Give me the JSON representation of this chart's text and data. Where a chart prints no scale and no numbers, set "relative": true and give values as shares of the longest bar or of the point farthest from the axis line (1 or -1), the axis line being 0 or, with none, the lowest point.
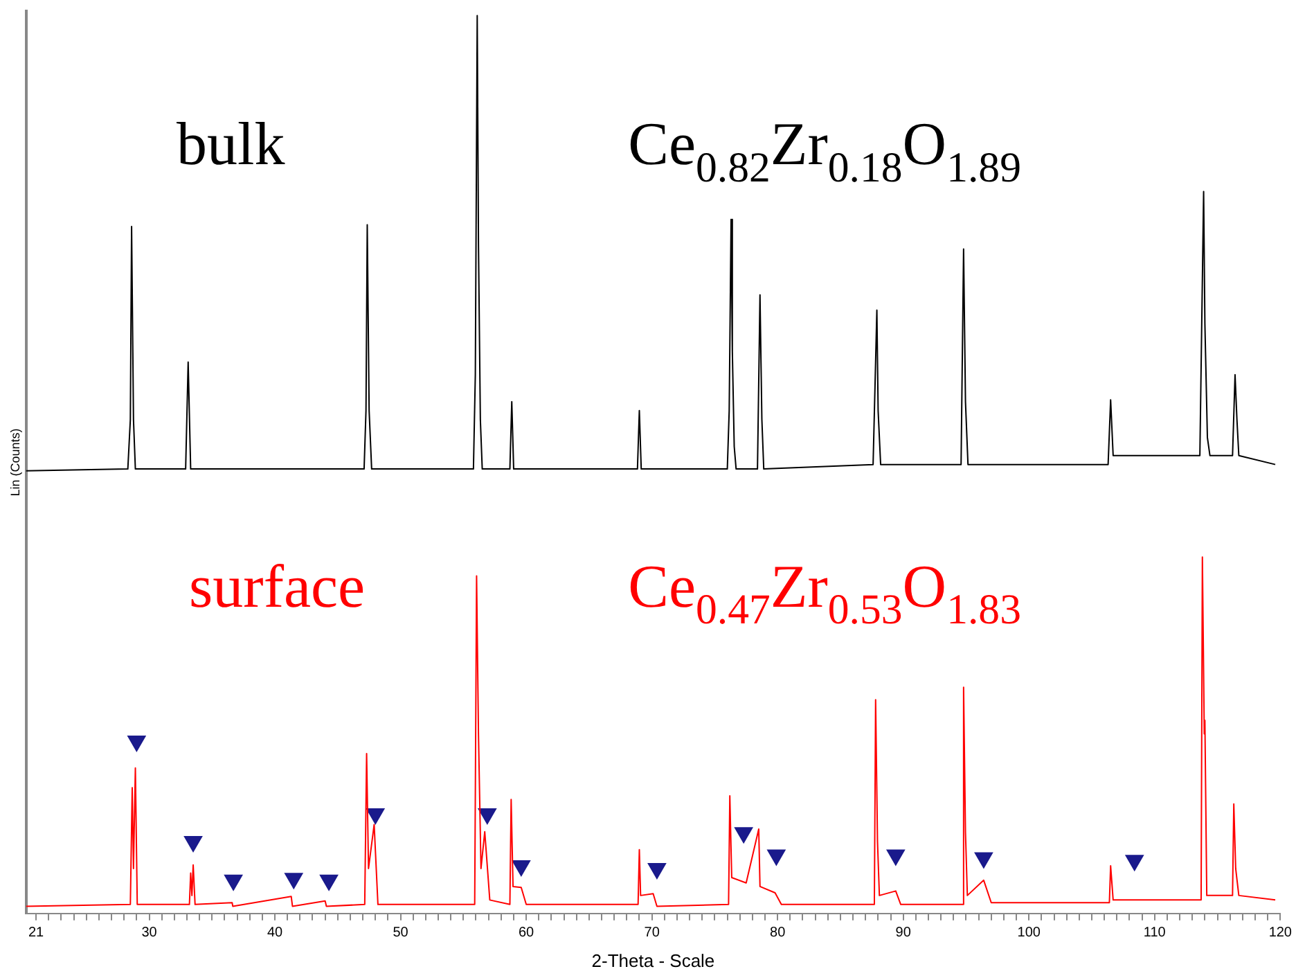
{
  "chart_data": {
    "type": "line",
    "relative": true,
    "xlabel": "2-Theta - Scale",
    "ylabel": "Lin (Counts)",
    "annotations": [
      "Ce$_{0.82}$Zr$_{0.18}$O$_{1.89}$",
      "Ce$_{0.47}$Zr$_{0.53}$O$_{1.83}$"
    ],
    "xlim": [
      20.2,
      120
    ],
    "xticks": [
      {
        "value": 21,
        "label": "21"
      },
      {
        "value": 22,
        "label": null
      },
      {
        "value": 23,
        "label": null
      },
      {
        "value": 24,
        "label": null
      },
      {
        "value": 25,
        "label": null
      },
      {
        "value": 26,
        "label": null
      },
      {
        "value": 27,
        "label": null
      },
      {
        "value": 28,
        "label": null
      },
      {
        "value": 29,
        "label": null
      },
      30,
      {
        "value": 31,
        "label": null
      },
      {
        "value": 32,
        "label": null
      },
      {
        "value": 33,
        "label": null
      },
      {
        "value": 34,
        "label": null
      },
      {
        "value": 35,
        "label": null
      },
      {
        "value": 36,
        "label": null
      },
      {
        "value": 37,
        "label": null
      },
      {
        "value": 38,
        "label": null
      },
      {
        "value": 39,
        "label": null
      },
      40,
      {
        "value": 41,
        "label": null
      },
      {
        "value": 42,
        "label": null
      },
      {
        "value": 43,
        "label": null
      },
      {
        "value": 44,
        "label": null
      },
      {
        "value": 45,
        "label": null
      },
      {
        "value": 46,
        "label": null
      },
      {
        "value": 47,
        "label": null
      },
      {
        "value": 48,
        "label": null
      },
      {
        "value": 49,
        "label": null
      },
      50,
      {
        "value": 51,
        "label": null
      },
      {
        "value": 52,
        "label": null
      },
      {
        "value": 53,
        "label": null
      },
      {
        "value": 54,
        "label": null
      },
      {
        "value": 55,
        "label": null
      },
      {
        "value": 56,
        "label": null
      },
      {
        "value": 57,
        "label": null
      },
      {
        "value": 58,
        "label": null
      },
      {
        "value": 59,
        "label": null
      },
      60,
      {
        "value": 61,
        "label": null
      },
      {
        "value": 62,
        "label": null
      },
      {
        "value": 63,
        "label": null
      },
      {
        "value": 64,
        "label": null
      },
      {
        "value": 65,
        "label": null
      },
      {
        "value": 66,
        "label": null
      },
      {
        "value": 67,
        "label": null
      },
      {
        "value": 68,
        "label": null
      },
      {
        "value": 69,
        "label": null
      },
      70,
      {
        "value": 71,
        "label": null
      },
      {
        "value": 72,
        "label": null
      },
      {
        "value": 73,
        "label": null
      },
      {
        "value": 74,
        "label": null
      },
      {
        "value": 75,
        "label": null
      },
      {
        "value": 76,
        "label": null
      },
      {
        "value": 77,
        "label": null
      },
      {
        "value": 78,
        "label": null
      },
      {
        "value": 79,
        "label": null
      },
      80,
      {
        "value": 81,
        "label": null
      },
      {
        "value": 82,
        "label": null
      },
      {
        "value": 83,
        "label": null
      },
      {
        "value": 84,
        "label": null
      },
      {
        "value": 85,
        "label": null
      },
      {
        "value": 86,
        "label": null
      },
      {
        "value": 87,
        "label": null
      },
      {
        "value": 88,
        "label": null
      },
      {
        "value": 89,
        "label": null
      },
      90,
      {
        "value": 91,
        "label": null
      },
      {
        "value": 92,
        "label": null
      },
      {
        "value": 93,
        "label": null
      },
      {
        "value": 94,
        "label": null
      },
      {
        "value": 95,
        "label": null
      },
      {
        "value": 96,
        "label": null
      },
      {
        "value": 97,
        "label": null
      },
      {
        "value": 98,
        "label": null
      },
      {
        "value": 99,
        "label": null
      },
      100,
      {
        "value": 101,
        "label": null
      },
      {
        "value": 102,
        "label": null
      },
      {
        "value": 103,
        "label": null
      },
      {
        "value": 104,
        "label": null
      },
      {
        "value": 105,
        "label": null
      },
      {
        "value": 106,
        "label": null
      },
      {
        "value": 107,
        "label": null
      },
      {
        "value": 108,
        "label": null
      },
      {
        "value": 109,
        "label": null
      },
      110,
      {
        "value": 111,
        "label": null
      },
      {
        "value": 112,
        "label": null
      },
      {
        "value": 113,
        "label": null
      },
      {
        "value": 114,
        "label": null
      },
      {
        "value": 115,
        "label": null
      },
      {
        "value": 116,
        "label": null
      },
      {
        "value": 117,
        "label": null
      },
      {
        "value": 118,
        "label": null
      },
      {
        "value": 119,
        "label": null
      },
      120
    ],
    "grid": false,
    "legend": false,
    "marker": "none",
    "line_style": "solid",
    "series": [
      {
        "name": "bulk",
        "color": "#000000",
        "x": [
          20.2,
          28.3,
          28.5,
          28.6,
          28.75,
          28.9,
          32.9,
          33.1,
          33.3,
          47.1,
          47.25,
          47.35,
          47.5,
          47.7,
          55.8,
          55.95,
          56.1,
          56.2,
          56.35,
          56.5,
          58.7,
          58.85,
          59.0,
          68.85,
          69.0,
          69.15,
          76.0,
          76.15,
          76.3,
          76.4,
          76.55,
          76.7,
          78.4,
          78.6,
          78.75,
          78.9,
          87.6,
          87.9,
          88.0,
          88.2,
          94.6,
          94.8,
          94.95,
          95.15,
          106.3,
          106.5,
          106.7,
          113.6,
          113.9,
          114.0,
          114.2,
          114.4,
          116.2,
          116.4,
          116.55,
          116.7,
          119.6
        ],
        "values": [
          0.493,
          0.495,
          0.55,
          0.765,
          0.55,
          0.495,
          0.495,
          0.614,
          0.495,
          0.495,
          0.56,
          0.767,
          0.56,
          0.495,
          0.495,
          0.6,
          1,
          0.745,
          0.55,
          0.495,
          0.495,
          0.57,
          0.495,
          0.495,
          0.56,
          0.495,
          0.495,
          0.56,
          0.773,
          0.626,
          0.52,
          0.495,
          0.495,
          0.689,
          0.55,
          0.495,
          0.5,
          0.672,
          0.56,
          0.5,
          0.5,
          0.74,
          0.57,
          0.5,
          0.5,
          0.572,
          0.51,
          0.51,
          0.804,
          0.657,
          0.53,
          0.51,
          0.51,
          0.6,
          0.55,
          0.51,
          0.5
        ]
      },
      {
        "name": "surface",
        "color": "#ff0000",
        "x": [
          20.2,
          28.5,
          28.65,
          28.75,
          28.9,
          29.05,
          33.2,
          33.3,
          33.4,
          33.5,
          33.65,
          36.6,
          36.65,
          41.3,
          41.4,
          44.0,
          44.1,
          47.15,
          47.3,
          47.45,
          47.9,
          48.2,
          55.9,
          56.05,
          56.2,
          56.4,
          56.7,
          57.1,
          58.7,
          58.8,
          58.95,
          59.6,
          60.0,
          68.9,
          69.0,
          69.1,
          70.1,
          70.4,
          76.1,
          76.2,
          76.35,
          77.5,
          78.5,
          78.6,
          79.8,
          80.3,
          87.7,
          87.8,
          87.95,
          88.1,
          89.4,
          89.8,
          94.7,
          94.8,
          94.95,
          95.1,
          96.4,
          97.0,
          106.4,
          106.5,
          106.7,
          113.7,
          113.8,
          113.95,
          114.0,
          114.15,
          116.2,
          116.3,
          116.45,
          116.7,
          119.6
        ],
        "values": [
          0.008,
          0.01,
          0.14,
          0.05,
          0.162,
          0.01,
          0.01,
          0.045,
          0.02,
          0.054,
          0.01,
          0.012,
          0.008,
          0.019,
          0.008,
          0.014,
          0.008,
          0.01,
          0.178,
          0.05,
          0.099,
          0.01,
          0.01,
          0.376,
          0.2,
          0.05,
          0.091,
          0.015,
          0.01,
          0.127,
          0.03,
          0.029,
          0.01,
          0.01,
          0.071,
          0.02,
          0.022,
          0.008,
          0.01,
          0.131,
          0.04,
          0.034,
          0.094,
          0.03,
          0.023,
          0.01,
          0.01,
          0.238,
          0.08,
          0.02,
          0.025,
          0.01,
          0.01,
          0.252,
          0.09,
          0.02,
          0.037,
          0.012,
          0.012,
          0.053,
          0.015,
          0.015,
          0.397,
          0.2,
          0.215,
          0.02,
          0.02,
          0.122,
          0.05,
          0.02,
          0.015
        ]
      },
      {
        "type": "scatter",
        "marker": "triangle",
        "color": "#1a1a8c",
        "x": [
          29.0,
          33.5,
          36.7,
          41.5,
          44.3,
          48.0,
          56.9,
          59.6,
          70.4,
          77.3,
          79.9,
          89.4,
          96.4,
          108.4
        ],
        "values": [
          0.192,
          0.08,
          0.037,
          0.039,
          0.037,
          0.111,
          0.111,
          0.053,
          0.05,
          0.09,
          0.065,
          0.065,
          0.062,
          0.059
        ]
      }
    ]
  }
}
